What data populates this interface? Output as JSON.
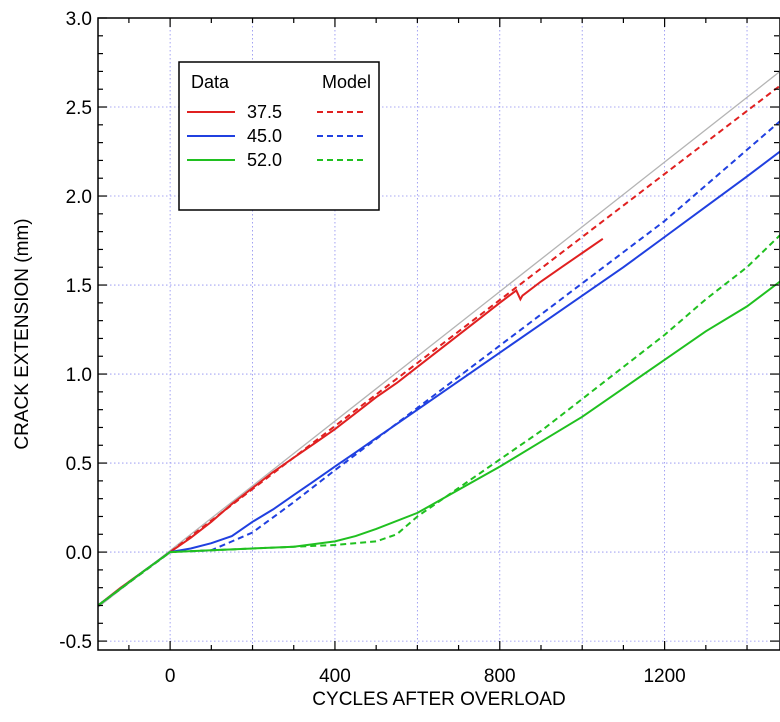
{
  "chart_data": {
    "type": "line",
    "title": "",
    "xlabel": "CYCLES AFTER OVERLOAD",
    "ylabel": "CRACK EXTENSION (mm)",
    "xlim": [
      -175,
      1480
    ],
    "ylim": [
      -0.55,
      3.0
    ],
    "xticks": [
      0,
      400,
      800,
      1200
    ],
    "xtick_labels": [
      "0",
      "400",
      "800",
      "1200"
    ],
    "yticks": [
      -0.5,
      0.0,
      0.5,
      1.0,
      1.5,
      2.0,
      2.5,
      3.0
    ],
    "ytick_labels": [
      "-0.5",
      "0.0",
      "0.5",
      "1.0",
      "1.5",
      "2.0",
      "2.5",
      "3.0"
    ],
    "grid": true,
    "legend": {
      "placement": "top-left",
      "header_data": "Data",
      "header_model": "Model"
    },
    "reference_line": {
      "color": "#b4b4b4",
      "x": [
        -175,
        1480
      ],
      "y": [
        -0.31,
        2.7
      ]
    },
    "series": [
      {
        "name": "37.5",
        "color": "#e02020",
        "data": {
          "x": [
            -175,
            -120,
            -60,
            0,
            50,
            100,
            150,
            200,
            250,
            300,
            350,
            400,
            450,
            500,
            550,
            600,
            650,
            700,
            750,
            800,
            840,
            850,
            855,
            900,
            950,
            1000,
            1050
          ],
          "y": [
            -0.3,
            -0.2,
            -0.1,
            0.0,
            0.08,
            0.17,
            0.27,
            0.36,
            0.45,
            0.53,
            0.61,
            0.69,
            0.78,
            0.87,
            0.95,
            1.04,
            1.13,
            1.22,
            1.31,
            1.4,
            1.47,
            1.42,
            1.44,
            1.52,
            1.6,
            1.68,
            1.76
          ]
        },
        "model": {
          "x": [
            -175,
            0,
            1480
          ],
          "y": [
            -0.3,
            0.0,
            2.62
          ]
        }
      },
      {
        "name": "45.0",
        "color": "#2040e0",
        "data": {
          "x": [
            -175,
            -60,
            0,
            50,
            100,
            150,
            200,
            250,
            300,
            350,
            400,
            450,
            500,
            550,
            600,
            700,
            800,
            900,
            1000,
            1100,
            1200,
            1300,
            1400,
            1480
          ],
          "y": [
            -0.3,
            -0.1,
            0.0,
            0.02,
            0.05,
            0.09,
            0.17,
            0.24,
            0.32,
            0.4,
            0.48,
            0.56,
            0.64,
            0.72,
            0.8,
            0.96,
            1.12,
            1.28,
            1.44,
            1.6,
            1.77,
            1.94,
            2.11,
            2.25
          ]
        },
        "model": {
          "x": [
            -175,
            0,
            100,
            200,
            300,
            400,
            600,
            800,
            1000,
            1200,
            1480
          ],
          "y": [
            -0.3,
            0.0,
            0.01,
            0.11,
            0.28,
            0.46,
            0.81,
            1.16,
            1.51,
            1.86,
            2.42
          ]
        }
      },
      {
        "name": "52.0",
        "color": "#20c020",
        "data": {
          "x": [
            -175,
            -60,
            0,
            100,
            200,
            300,
            400,
            450,
            500,
            600,
            700,
            800,
            900,
            1000,
            1100,
            1200,
            1300,
            1400,
            1480
          ],
          "y": [
            -0.3,
            -0.1,
            0.0,
            0.01,
            0.02,
            0.03,
            0.06,
            0.09,
            0.13,
            0.22,
            0.35,
            0.48,
            0.62,
            0.76,
            0.92,
            1.08,
            1.24,
            1.38,
            1.52
          ]
        },
        "model": {
          "x": [
            -175,
            0,
            200,
            400,
            500,
            550,
            600,
            700,
            800,
            900,
            1000,
            1100,
            1200,
            1300,
            1400,
            1480
          ],
          "y": [
            -0.3,
            0.0,
            0.02,
            0.04,
            0.06,
            0.1,
            0.2,
            0.36,
            0.52,
            0.68,
            0.86,
            1.04,
            1.22,
            1.42,
            1.6,
            1.78
          ]
        }
      }
    ]
  }
}
